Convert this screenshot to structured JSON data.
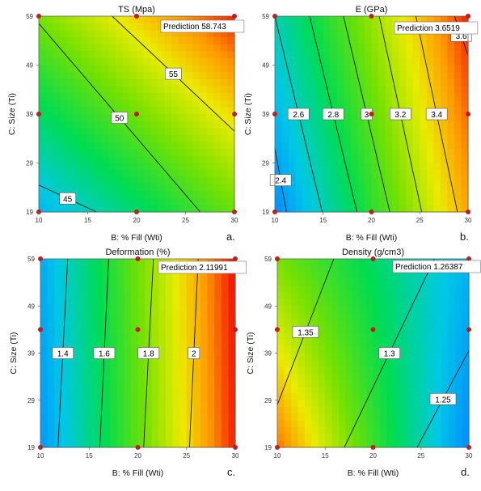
{
  "chart_data": [
    {
      "type": "heatmap",
      "title": "TS (Mpa)",
      "xlabel": "B: % Fill (Wti)",
      "ylabel": "C: Size (Ti)",
      "xlim": [
        10,
        30
      ],
      "ylim": [
        19,
        59
      ],
      "x_ticks": [
        "10",
        "15",
        "20",
        "25",
        "30"
      ],
      "y_ticks": [
        "19",
        "29",
        "39",
        "49",
        "59"
      ],
      "panel_label": "a.",
      "prediction_text": "Prediction 58.743",
      "color_range": [
        40,
        60
      ],
      "corner_values": {
        "x10_y19": 42,
        "x30_y19": 50.5,
        "x10_y59": 51,
        "x30_y59": 59.5
      },
      "contours": [
        {
          "label": "45",
          "from": [
            10,
            24.5
          ],
          "to": [
            15.9,
            19
          ]
        },
        {
          "label": "50",
          "from": [
            10,
            57.5
          ],
          "to": [
            26.5,
            19
          ]
        },
        {
          "label": "55",
          "from": [
            17.5,
            59
          ],
          "to": [
            30,
            35.5
          ]
        }
      ],
      "design_points": [
        [
          10,
          19
        ],
        [
          20,
          19
        ],
        [
          30,
          19
        ],
        [
          10,
          39
        ],
        [
          20,
          39
        ],
        [
          30,
          39
        ],
        [
          10,
          59
        ],
        [
          20,
          59
        ],
        [
          30,
          59
        ]
      ]
    },
    {
      "type": "heatmap",
      "title": "E (GPa)",
      "xlabel": "B: % Fill (Wti)",
      "ylabel": "C: Size (Ti)",
      "xlim": [
        10,
        30
      ],
      "ylim": [
        19,
        59
      ],
      "x_ticks": [
        "10",
        "15",
        "20",
        "25",
        "30"
      ],
      "y_ticks": [
        "19",
        "29",
        "39",
        "49",
        "59"
      ],
      "panel_label": "b.",
      "prediction_text": "Prediction 3.6519",
      "color_range": [
        2.3,
        3.7
      ],
      "corner_values": {
        "x10_y19": 2.3,
        "x30_y19": 3.47,
        "x10_y59": 2.6,
        "x30_y59": 3.67
      },
      "contours": [
        {
          "label": "2.4",
          "from": [
            10,
            32
          ],
          "to": [
            11.2,
            19
          ]
        },
        {
          "label": "2.6",
          "from": [
            10,
            59
          ],
          "to": [
            14.9,
            19
          ]
        },
        {
          "label": "2.8",
          "from": [
            13.6,
            59
          ],
          "to": [
            18.5,
            19
          ]
        },
        {
          "label": "3",
          "from": [
            17.1,
            59
          ],
          "to": [
            21.9,
            19
          ]
        },
        {
          "label": "3.2",
          "from": [
            20.8,
            59
          ],
          "to": [
            25.2,
            19
          ]
        },
        {
          "label": "3.4",
          "from": [
            24.6,
            59
          ],
          "to": [
            28.9,
            19
          ]
        },
        {
          "label": "3.6",
          "from": [
            28.6,
            59
          ],
          "to": [
            30,
            51
          ]
        }
      ],
      "design_points": [
        [
          10,
          19
        ],
        [
          20,
          19
        ],
        [
          30,
          19
        ],
        [
          10,
          39
        ],
        [
          20,
          39
        ],
        [
          30,
          39
        ],
        [
          10,
          59
        ],
        [
          20,
          59
        ],
        [
          30,
          59
        ]
      ]
    },
    {
      "type": "heatmap",
      "title": "Deformation (%)",
      "xlabel": "B: % Fill (Wti)",
      "ylabel": "C: Size (Ti)",
      "xlim": [
        10,
        30
      ],
      "ylim": [
        19,
        59
      ],
      "x_ticks": [
        "10",
        "15",
        "20",
        "25",
        "30"
      ],
      "y_ticks": [
        "19",
        "29",
        "39",
        "49",
        "59"
      ],
      "panel_label": "c.",
      "prediction_text": "Prediction 2.11991",
      "color_range": [
        1.25,
        2.2
      ],
      "corner_values": {
        "x10_y19": 1.28,
        "x30_y19": 2.18,
        "x10_y59": 1.32,
        "x30_y59": 2.2
      },
      "contours": [
        {
          "label": "1.4",
          "from": [
            12.8,
            59
          ],
          "to": [
            11.8,
            19
          ]
        },
        {
          "label": "1.6",
          "from": [
            17,
            59
          ],
          "to": [
            16.1,
            19
          ]
        },
        {
          "label": "1.8",
          "from": [
            21.6,
            59
          ],
          "to": [
            20.6,
            19
          ]
        },
        {
          "label": "2",
          "from": [
            26.2,
            59
          ],
          "to": [
            25.3,
            19
          ]
        }
      ],
      "design_points": [
        [
          10,
          19
        ],
        [
          20,
          19
        ],
        [
          30,
          19
        ],
        [
          10,
          44
        ],
        [
          20,
          44
        ],
        [
          30,
          44
        ],
        [
          10,
          59
        ],
        [
          20,
          59
        ],
        [
          30,
          59
        ]
      ]
    },
    {
      "type": "heatmap",
      "title": "Density (g/cm3)",
      "xlabel": "B: % Fill (Wti)",
      "ylabel": "C: Size (Ti)",
      "xlim": [
        10,
        30
      ],
      "ylim": [
        19,
        59
      ],
      "x_ticks": [
        "10",
        "15",
        "20",
        "25",
        "30"
      ],
      "y_ticks": [
        "19",
        "29",
        "39",
        "49",
        "59"
      ],
      "panel_label": "d.",
      "prediction_text": "Prediction 1.26387",
      "color_range": [
        1.22,
        1.42
      ],
      "corner_values": {
        "x10_y19": 1.4,
        "x30_y19": 1.22,
        "x10_y59": 1.33,
        "x30_y59": 1.24
      },
      "contours": [
        {
          "label": "1.35",
          "from": [
            10,
            28
          ],
          "to": [
            15.9,
            59
          ]
        },
        {
          "label": "1.3",
          "from": [
            17,
            19
          ],
          "to": [
            26.4,
            59
          ]
        },
        {
          "label": "1.25",
          "from": [
            24.6,
            19
          ],
          "to": [
            30,
            39.5
          ]
        }
      ],
      "design_points": [
        [
          10,
          19
        ],
        [
          20,
          19
        ],
        [
          30,
          19
        ],
        [
          10,
          44
        ],
        [
          20,
          44
        ],
        [
          30,
          44
        ],
        [
          10,
          59
        ],
        [
          20,
          59
        ],
        [
          30,
          59
        ]
      ]
    }
  ]
}
